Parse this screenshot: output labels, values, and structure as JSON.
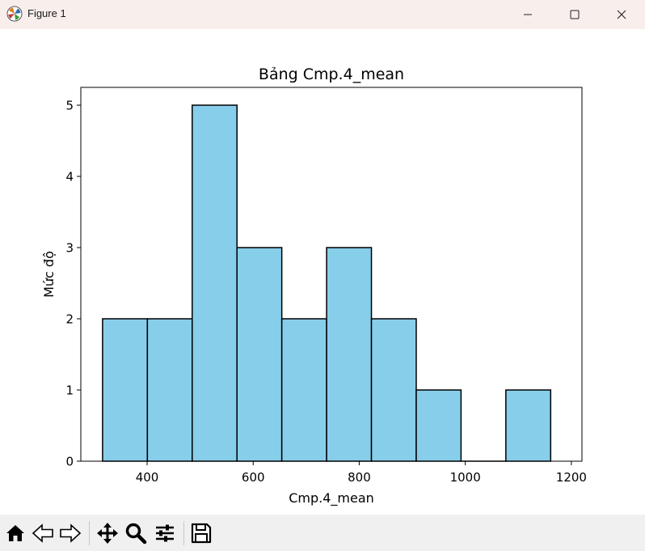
{
  "window": {
    "title": "Figure 1",
    "icons": [
      "matplotlib-logo-icon",
      "minimize-icon",
      "maximize-icon",
      "close-icon"
    ]
  },
  "toolbar": {
    "icons": [
      "home-icon",
      "back-icon",
      "forward-icon",
      "pan-icon",
      "zoom-icon",
      "configure-subplots-icon",
      "save-icon"
    ]
  },
  "chart_data": {
    "type": "bar",
    "title": "Bảng Cmp.4_mean",
    "xlabel": "Cmp.4_mean",
    "ylabel": "Mức độ",
    "bin_edges": [
      316,
      400.5,
      485,
      569.5,
      654,
      738.5,
      823,
      907.5,
      992,
      1076.5,
      1161
    ],
    "values": [
      2,
      2,
      5,
      3,
      2,
      3,
      2,
      1,
      0,
      1
    ],
    "xlim": [
      275,
      1220
    ],
    "ylim": [
      0,
      5.25
    ],
    "xticks": [
      400,
      600,
      800,
      1000,
      1200
    ],
    "yticks": [
      0,
      1,
      2,
      3,
      4,
      5
    ],
    "bar_color": "#87ceeb",
    "edge_color": "#000000",
    "grid": false
  }
}
